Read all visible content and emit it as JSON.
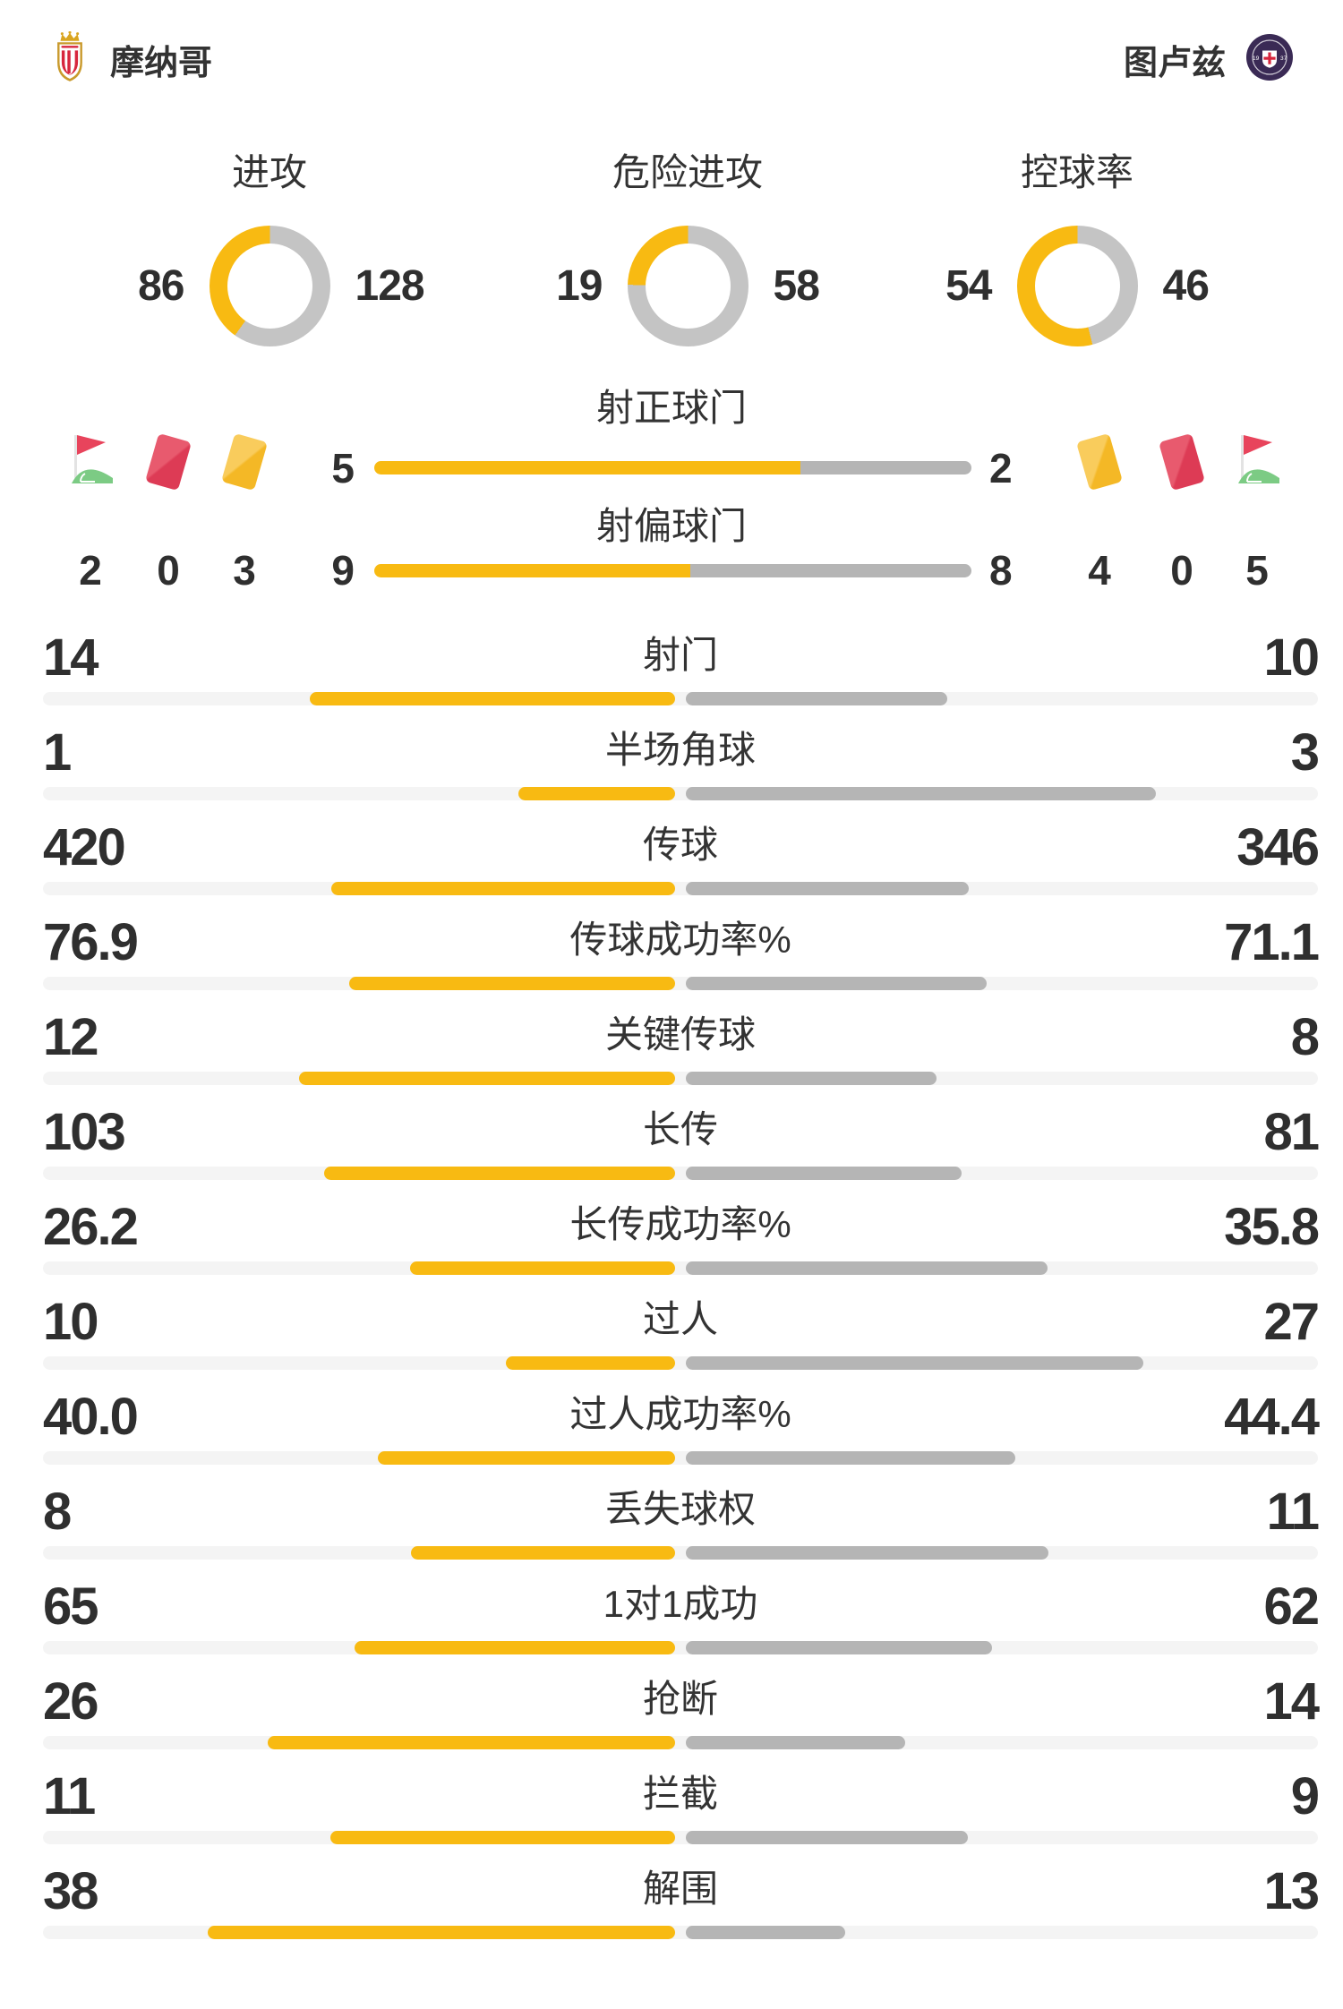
{
  "header": {
    "home_team": {
      "name": "摩纳哥",
      "logo": "monaco-crest"
    },
    "away_team": {
      "name": "图卢兹",
      "logo": "toulouse-crest"
    }
  },
  "colors": {
    "home_accent": "#F8BA12",
    "away_bar": "#B5B5B5",
    "donut_away": "#C4C4C4",
    "bar_track": "#F4F4F4",
    "text_dark": "#2F2F2F",
    "label_text": "#333333",
    "red_card": "#DD3B55",
    "yellow_card": "#F4B826",
    "flag_red": "#E8445C",
    "flag_green": "#7CCB84"
  },
  "donuts": [
    {
      "label": "进攻",
      "home": 86,
      "away": 128
    },
    {
      "label": "危险进攻",
      "home": 19,
      "away": 58
    },
    {
      "label": "控球率",
      "home": 54,
      "away": 46
    }
  ],
  "discipline": {
    "home": {
      "corner_flags": 2,
      "red_cards": 0,
      "yellow_cards": 3
    },
    "away": {
      "yellow_cards": 4,
      "red_cards": 0,
      "corner_flags": 5
    }
  },
  "shooting_rows": [
    {
      "label": "射正球门",
      "home": 5,
      "away": 2
    },
    {
      "label": "射偏球门",
      "home": 9,
      "away": 8
    }
  ],
  "stat_rows": [
    {
      "label": "射门",
      "home": "14",
      "away": "10"
    },
    {
      "label": "半场角球",
      "home": "1",
      "away": "3"
    },
    {
      "label": "传球",
      "home": "420",
      "away": "346"
    },
    {
      "label": "传球成功率%",
      "home": "76.9",
      "away": "71.1"
    },
    {
      "label": "关键传球",
      "home": "12",
      "away": "8"
    },
    {
      "label": "长传",
      "home": "103",
      "away": "81"
    },
    {
      "label": "长传成功率%",
      "home": "26.2",
      "away": "35.8"
    },
    {
      "label": "过人",
      "home": "10",
      "away": "27"
    },
    {
      "label": "过人成功率%",
      "home": "40.0",
      "away": "44.4"
    },
    {
      "label": "丢失球权",
      "home": "8",
      "away": "11"
    },
    {
      "label": "1对1成功",
      "home": "65",
      "away": "62"
    },
    {
      "label": "抢断",
      "home": "26",
      "away": "14"
    },
    {
      "label": "拦截",
      "home": "11",
      "away": "9"
    },
    {
      "label": "解围",
      "home": "38",
      "away": "13"
    }
  ],
  "chart_data": [
    {
      "type": "pie",
      "title": "进攻",
      "series": [
        {
          "name": "摩纳哥",
          "value": 86
        },
        {
          "name": "图卢兹",
          "value": 128
        }
      ]
    },
    {
      "type": "pie",
      "title": "危险进攻",
      "series": [
        {
          "name": "摩纳哥",
          "value": 19
        },
        {
          "name": "图卢兹",
          "value": 58
        }
      ]
    },
    {
      "type": "pie",
      "title": "控球率",
      "series": [
        {
          "name": "摩纳哥",
          "value": 54
        },
        {
          "name": "图卢兹",
          "value": 46
        }
      ]
    },
    {
      "type": "bar",
      "title": "比赛数据对比",
      "categories": [
        "射正球门",
        "射偏球门",
        "射门",
        "半场角球",
        "传球",
        "传球成功率%",
        "关键传球",
        "长传",
        "长传成功率%",
        "过人",
        "过人成功率%",
        "丢失球权",
        "1对1成功",
        "抢断",
        "拦截",
        "解围"
      ],
      "series": [
        {
          "name": "摩纳哥",
          "values": [
            5,
            9,
            14,
            1,
            420,
            76.9,
            12,
            103,
            26.2,
            10,
            40.0,
            8,
            65,
            26,
            11,
            38
          ]
        },
        {
          "name": "图卢兹",
          "values": [
            2,
            8,
            10,
            3,
            346,
            71.1,
            8,
            81,
            35.8,
            27,
            44.4,
            11,
            62,
            14,
            9,
            13
          ]
        }
      ]
    }
  ]
}
